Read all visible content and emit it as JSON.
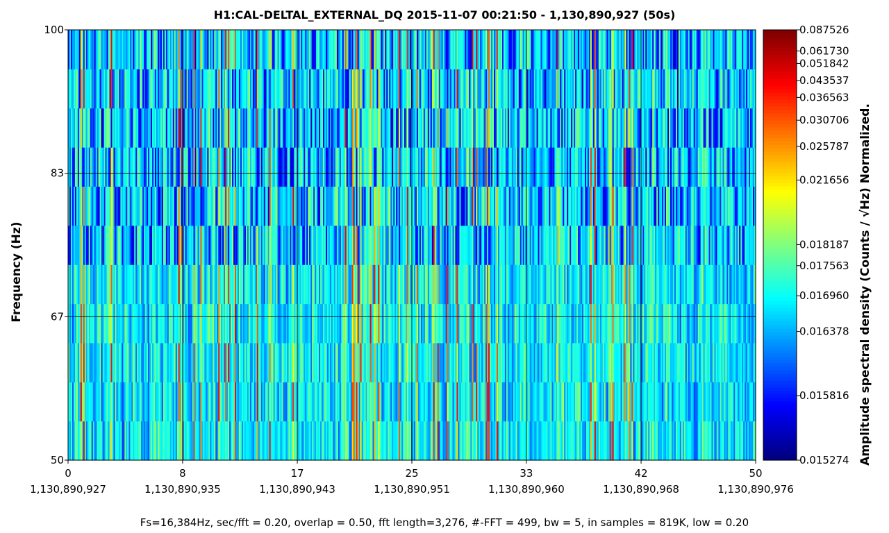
{
  "chart_data": {
    "type": "heatmap",
    "title": "H1:CAL-DELTAL_EXTERNAL_DQ 2015-11-07 00:21:50 - 1,130,890,927 (50s)",
    "ylabel": "Frequency (Hz)",
    "xlabel": "",
    "colorbar_label": "Amplitude spectral density (Counts / √Hz) Normalized.",
    "footer": "Fs=16,384Hz, sec/fft = 0.20, overlap = 0.50, fft length=3,276, #-FFT = 499, bw = 5, in samples = 819K, low = 0.20",
    "xlim": [
      0,
      50
    ],
    "ylim": [
      50,
      100
    ],
    "x_ticks": [
      {
        "value": 0,
        "label": "0",
        "gps": "1,130,890,927"
      },
      {
        "value": 8.33,
        "label": "8",
        "gps": "1,130,890,935"
      },
      {
        "value": 16.67,
        "label": "17",
        "gps": "1,130,890,943"
      },
      {
        "value": 25,
        "label": "25",
        "gps": "1,130,890,951"
      },
      {
        "value": 33.33,
        "label": "33",
        "gps": "1,130,890,960"
      },
      {
        "value": 41.67,
        "label": "42",
        "gps": "1,130,890,968"
      },
      {
        "value": 50,
        "label": "50",
        "gps": "1,130,890,976"
      }
    ],
    "y_ticks": [
      {
        "value": 50,
        "label": "50"
      },
      {
        "value": 66.67,
        "label": "67"
      },
      {
        "value": 83.33,
        "label": "83"
      },
      {
        "value": 100,
        "label": "100"
      }
    ],
    "colorbar": {
      "min": 0.015274,
      "max": 0.087526,
      "ticks": [
        {
          "value": 0.087526,
          "frac": 1.0
        },
        {
          "value": 0.06173,
          "frac": 0.951
        },
        {
          "value": 0.051842,
          "frac": 0.922
        },
        {
          "value": 0.043537,
          "frac": 0.882
        },
        {
          "value": 0.036563,
          "frac": 0.843
        },
        {
          "value": 0.030706,
          "frac": 0.79
        },
        {
          "value": 0.025787,
          "frac": 0.729
        },
        {
          "value": 0.021656,
          "frac": 0.651
        },
        {
          "value": 0.018187,
          "frac": 0.501
        },
        {
          "value": 0.017563,
          "frac": 0.452
        },
        {
          "value": 0.01696,
          "frac": 0.382
        },
        {
          "value": 0.016378,
          "frac": 0.299
        },
        {
          "value": 0.015816,
          "frac": 0.15
        },
        {
          "value": 0.015274,
          "frac": 0.0
        }
      ],
      "colormap": "jet"
    },
    "grid": true,
    "time_bins": 499,
    "freq_bins": 11
  },
  "colors": {
    "low": "#00007f",
    "high": "#7f0000",
    "grid": "#000000"
  }
}
